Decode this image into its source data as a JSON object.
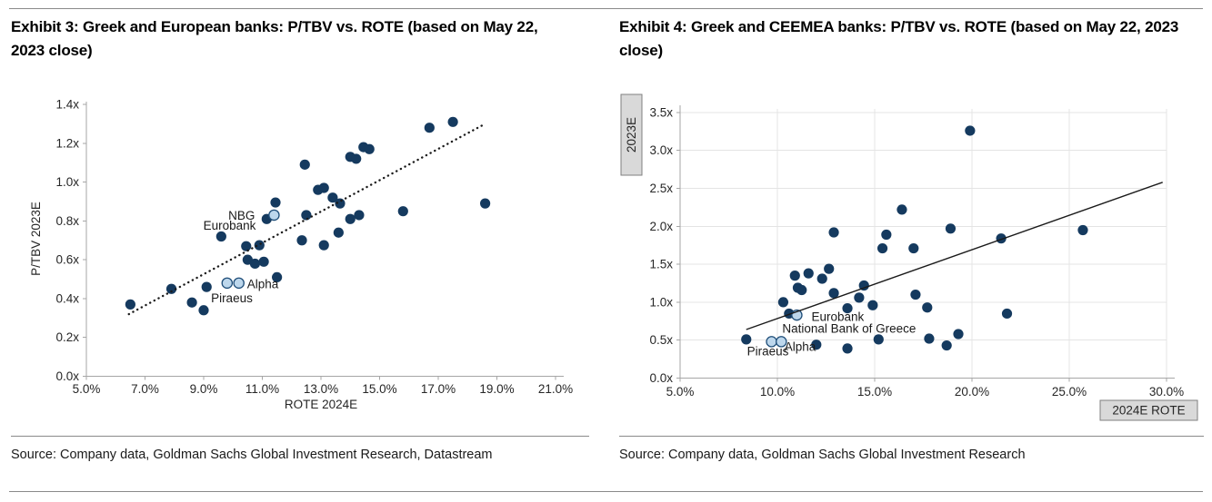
{
  "exhibits": [
    {
      "title": "Exhibit 3: Greek and European banks: P/TBV vs. ROTE (based on May 22, 2023 close)",
      "source": "Source: Company data, Goldman Sachs Global Investment Research, Datastream"
    },
    {
      "title": "Exhibit 4: Greek and CEEMEA banks: P/TBV vs. ROTE (based on May 22, 2023 close)",
      "source": "Source: Company data, Goldman Sachs Global Investment Research"
    }
  ],
  "colors": {
    "point": "#153a5f",
    "highlight_fill": "#bdd7ec",
    "highlight_stroke": "#1f4e79",
    "axis": "#a6a6a6",
    "grid": "#e4e4e4",
    "tick_text": "#262626",
    "label_text": "#1a1a1a",
    "trend": "#1a1a1a",
    "box_fill": "#d9d9d9",
    "box_stroke": "#7f7f7f",
    "rule": "#8a8a8a"
  },
  "chart_data": [
    {
      "type": "scatter",
      "title": "Exhibit 3: Greek and European banks: P/TBV vs. ROTE (based on May 22, 2023 close)",
      "xlabel": "ROTE 2024E",
      "ylabel": "P/TBV 2023E",
      "xlim": [
        5,
        21
      ],
      "ylim": [
        0,
        1.4
      ],
      "grid": false,
      "legend": "none",
      "x_tick_labels": [
        "5.0%",
        "7.0%",
        "9.0%",
        "11.0%",
        "13.0%",
        "15.0%",
        "17.0%",
        "19.0%",
        "21.0%"
      ],
      "x_tick_values": [
        5,
        7,
        9,
        11,
        13,
        15,
        17,
        19,
        21
      ],
      "y_tick_labels": [
        "0.0x",
        "0.2x",
        "0.4x",
        "0.6x",
        "0.8x",
        "1.0x",
        "1.2x",
        "1.4x"
      ],
      "y_tick_values": [
        0,
        0.2,
        0.4,
        0.6,
        0.8,
        1.0,
        1.2,
        1.4
      ],
      "points": [
        [
          6.5,
          0.37
        ],
        [
          7.9,
          0.45
        ],
        [
          8.6,
          0.38
        ],
        [
          9.0,
          0.34
        ],
        [
          9.1,
          0.46
        ],
        [
          9.6,
          0.72
        ],
        [
          10.45,
          0.67
        ],
        [
          10.9,
          0.675
        ],
        [
          10.5,
          0.6
        ],
        [
          10.75,
          0.58
        ],
        [
          11.05,
          0.59
        ],
        [
          11.45,
          0.895
        ],
        [
          11.5,
          0.51
        ],
        [
          12.35,
          0.7
        ],
        [
          12.45,
          1.09
        ],
        [
          12.5,
          0.83
        ],
        [
          12.9,
          0.96
        ],
        [
          13.1,
          0.97
        ],
        [
          13.1,
          0.675
        ],
        [
          13.4,
          0.92
        ],
        [
          13.6,
          0.74
        ],
        [
          13.65,
          0.89
        ],
        [
          14.0,
          1.13
        ],
        [
          14.2,
          1.12
        ],
        [
          14.45,
          1.18
        ],
        [
          14.65,
          1.17
        ],
        [
          14.0,
          0.81
        ],
        [
          14.3,
          0.83
        ],
        [
          15.8,
          0.85
        ],
        [
          16.7,
          1.28
        ],
        [
          17.5,
          1.31
        ],
        [
          18.6,
          0.89
        ]
      ],
      "greek_banks": [
        {
          "name": "Eurobank",
          "x": 11.15,
          "y": 0.81,
          "highlighted": false
        },
        {
          "name": "NBG",
          "x": 11.4,
          "y": 0.83,
          "highlighted": true
        },
        {
          "name": "Piraeus",
          "x": 9.8,
          "y": 0.48,
          "highlighted": true
        },
        {
          "name": "Alpha",
          "x": 10.2,
          "y": 0.48,
          "highlighted": true
        }
      ],
      "trendline": {
        "style": "dotted",
        "x1": 6.45,
        "y1": 0.32,
        "x2": 18.6,
        "y2": 1.3
      },
      "annotations": [
        {
          "text": "NBG",
          "x": 10.75,
          "y": 0.806,
          "anchor": "end"
        },
        {
          "text": "Eurobank",
          "x": 10.78,
          "y": 0.755,
          "anchor": "end"
        },
        {
          "text": "Alpha",
          "x": 10.48,
          "y": 0.454,
          "anchor": "start"
        },
        {
          "text": "Piraeus",
          "x": 9.25,
          "y": 0.381,
          "anchor": "start"
        }
      ]
    },
    {
      "type": "scatter",
      "title": "Exhibit 4: Greek and CEEMEA banks: P/TBV vs. ROTE (based on May 22, 2023 close)",
      "xlabel": "2024E ROTE",
      "ylabel": "2023E",
      "xlim": [
        5,
        30
      ],
      "ylim": [
        0,
        3.5
      ],
      "grid": true,
      "legend": "none",
      "x_tick_labels": [
        "5.0%",
        "10.0%",
        "15.0%",
        "20.0%",
        "25.0%",
        "30.0%"
      ],
      "x_tick_values": [
        5,
        10,
        15,
        20,
        25,
        30
      ],
      "y_tick_labels": [
        "0.0x",
        "0.5x",
        "1.0x",
        "1.5x",
        "2.0x",
        "2.5x",
        "3.0x",
        "3.5x"
      ],
      "y_tick_values": [
        0,
        0.5,
        1.0,
        1.5,
        2.0,
        2.5,
        3.0,
        3.5
      ],
      "points": [
        [
          8.4,
          0.51
        ],
        [
          10.3,
          1.0
        ],
        [
          10.9,
          1.35
        ],
        [
          11.05,
          1.19
        ],
        [
          11.25,
          1.16
        ],
        [
          11.6,
          1.38
        ],
        [
          12.0,
          0.44
        ],
        [
          12.3,
          1.31
        ],
        [
          12.65,
          1.44
        ],
        [
          12.9,
          1.12
        ],
        [
          12.9,
          1.92
        ],
        [
          13.6,
          0.92
        ],
        [
          13.6,
          0.39
        ],
        [
          14.2,
          1.06
        ],
        [
          14.45,
          1.22
        ],
        [
          14.9,
          0.96
        ],
        [
          15.2,
          0.51
        ],
        [
          15.4,
          1.71
        ],
        [
          15.6,
          1.89
        ],
        [
          16.4,
          2.22
        ],
        [
          17.0,
          1.71
        ],
        [
          17.1,
          1.1
        ],
        [
          17.7,
          0.93
        ],
        [
          17.8,
          0.52
        ],
        [
          18.7,
          0.43
        ],
        [
          18.9,
          1.97
        ],
        [
          19.3,
          0.58
        ],
        [
          19.9,
          3.26
        ],
        [
          21.5,
          1.84
        ],
        [
          21.8,
          0.85
        ],
        [
          25.7,
          1.95
        ]
      ],
      "greek_banks": [
        {
          "name": "National Bank of Greece",
          "x": 10.6,
          "y": 0.85,
          "highlighted": false
        },
        {
          "name": "Eurobank",
          "x": 11.0,
          "y": 0.83,
          "highlighted": true
        },
        {
          "name": "Piraeus",
          "x": 9.7,
          "y": 0.48,
          "highlighted": true
        },
        {
          "name": "Alpha",
          "x": 10.2,
          "y": 0.48,
          "highlighted": true
        }
      ],
      "trendline": {
        "style": "solid",
        "x1": 8.4,
        "y1": 0.64,
        "x2": 29.8,
        "y2": 2.58
      },
      "annotations": [
        {
          "text": "Eurobank",
          "x": 11.75,
          "y": 0.755,
          "anchor": "start"
        },
        {
          "text": "National Bank of Greece",
          "x": 10.25,
          "y": 0.598,
          "anchor": "start"
        },
        {
          "text": "Alpha",
          "x": 10.36,
          "y": 0.359,
          "anchor": "start"
        },
        {
          "text": "Piraeus",
          "x": 8.44,
          "y": 0.3,
          "anchor": "start"
        }
      ]
    }
  ]
}
